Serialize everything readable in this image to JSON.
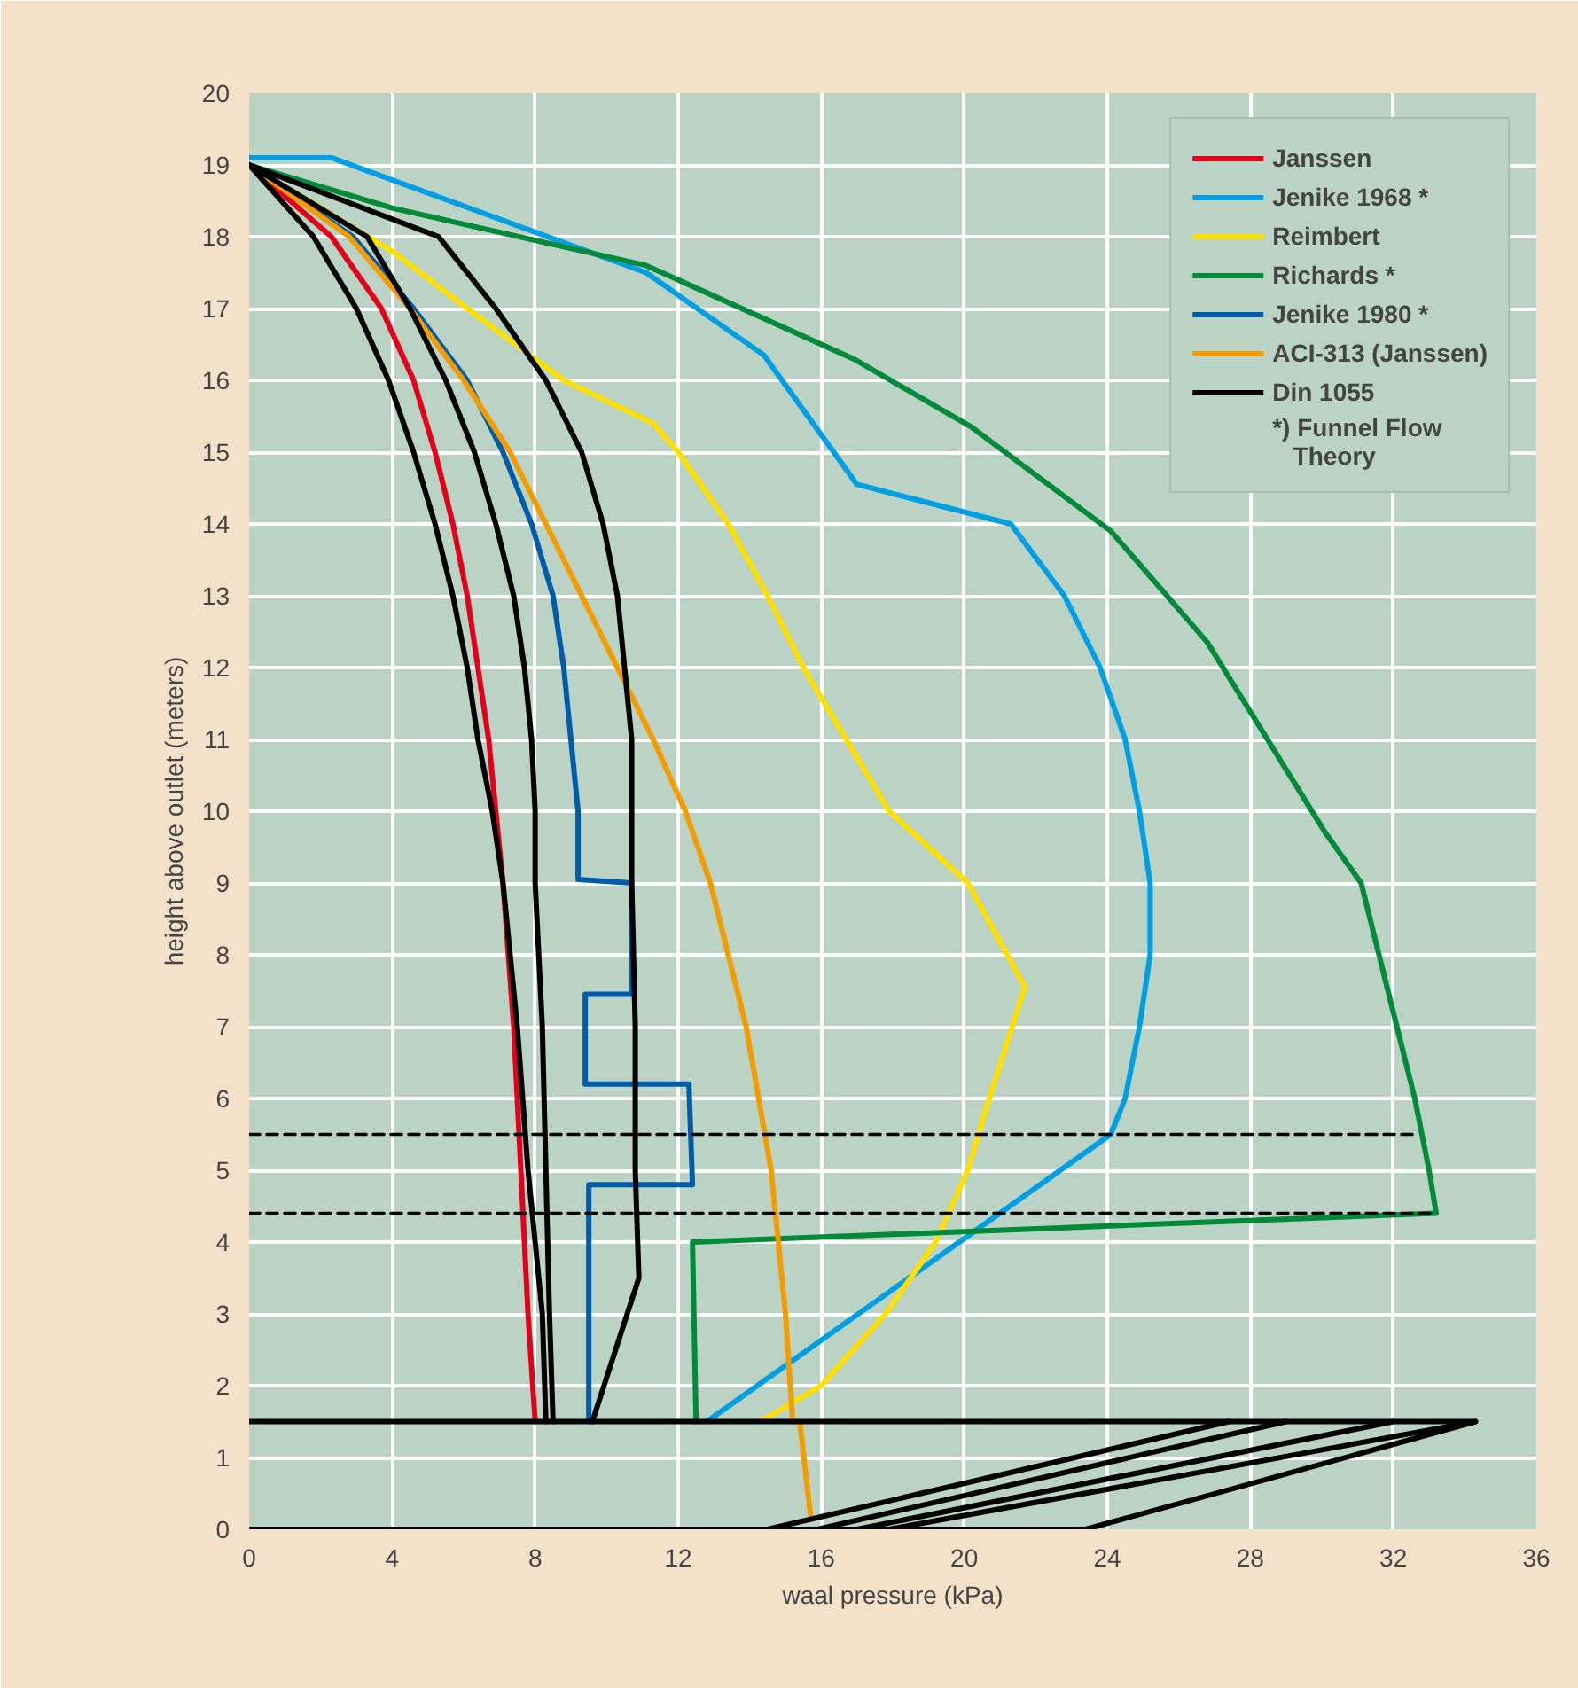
{
  "chart_data": {
    "type": "line",
    "xlabel": "waal pressure (kPa)",
    "ylabel": "height above outlet (meters)",
    "xlim": [
      0,
      36
    ],
    "ylim": [
      0,
      20
    ],
    "xticks": [
      0,
      4,
      8,
      12,
      16,
      20,
      24,
      28,
      32,
      36
    ],
    "yticks": [
      0,
      1,
      2,
      3,
      4,
      5,
      6,
      7,
      8,
      9,
      10,
      11,
      12,
      13,
      14,
      15,
      16,
      17,
      18,
      19,
      20
    ],
    "grid": true,
    "legend": "top right",
    "annotations": [
      "*) Funnel Flow\n   Theory"
    ],
    "series": [
      {
        "name": "Janssen",
        "color": "#e2001a",
        "x": [
          0,
          2.3,
          3.7,
          4.6,
          5.2,
          5.7,
          6.1,
          6.4,
          6.7,
          6.9,
          7.1,
          7.4,
          7.6,
          7.8,
          8.0
        ],
        "values": [
          19,
          18,
          17,
          16,
          15,
          14,
          13,
          12,
          11,
          10,
          9,
          7,
          5,
          3,
          1.5
        ]
      },
      {
        "name": "Jenike 1968 *",
        "color": "#009fe3",
        "x": [
          0,
          2.3,
          11.1,
          14.4,
          17.0,
          21.3,
          22.8,
          23.8,
          24.5,
          24.9,
          25.2,
          25.2,
          24.9,
          24.5,
          24.1,
          12.8
        ],
        "values": [
          19.1,
          19.1,
          17.5,
          16.35,
          14.55,
          14.0,
          13,
          12,
          11,
          10,
          9,
          8,
          7,
          6,
          5.5,
          1.5
        ]
      },
      {
        "name": "Reimbert",
        "color": "#ffe000",
        "x": [
          0,
          4.0,
          6.1,
          8.8,
          11.3,
          12.0,
          13.4,
          14.5,
          15.5,
          16.7,
          17.9,
          20.1,
          21.7,
          20.7,
          20.1,
          19.2,
          17.8,
          16.0,
          14.3
        ],
        "values": [
          19,
          17.8,
          17,
          16,
          15.4,
          15,
          14,
          13,
          12,
          11,
          10,
          9,
          7.55,
          6,
          5,
          4,
          3,
          2,
          1.5
        ]
      },
      {
        "name": "Richards *",
        "color": "#008a3a",
        "x": [
          0,
          4.0,
          11.1,
          16.9,
          20.2,
          24.1,
          26.8,
          30.1,
          31.1,
          31.6,
          32.1,
          32.6,
          33.0,
          33.2,
          12.4,
          12.5
        ],
        "values": [
          19,
          18.4,
          17.6,
          16.3,
          15.35,
          13.9,
          12.35,
          9.7,
          9,
          8,
          7,
          6,
          5,
          4.4,
          4.0,
          1.5
        ]
      },
      {
        "name": "Jenike 1980 *",
        "color": "#005ca9",
        "x": [
          0,
          2.9,
          4.6,
          6.1,
          7.1,
          7.9,
          8.5,
          8.8,
          9.0,
          9.2,
          9.2,
          10.7,
          10.7,
          9.4,
          9.4,
          12.3,
          12.4,
          9.5,
          9.5
        ],
        "values": [
          19,
          18,
          17,
          16,
          15,
          14,
          13,
          12,
          11,
          10,
          9.05,
          9.0,
          7.45,
          7.45,
          6.2,
          6.2,
          4.8,
          4.8,
          1.5
        ]
      },
      {
        "name": "ACI-313 (Janssen)",
        "color": "#f39c00",
        "x": [
          0,
          2.8,
          4.5,
          6.0,
          7.3,
          8.3,
          9.3,
          10.3,
          11.3,
          12.2,
          12.9,
          13.9,
          14.6,
          15.0,
          15.2,
          15.4,
          15.7
        ],
        "values": [
          19,
          18,
          17,
          16,
          15,
          14,
          13,
          12,
          11,
          10,
          9,
          7,
          5,
          3,
          1.5,
          1.5,
          0.2
        ]
      },
      {
        "name": "Din 1055",
        "color": "#000000",
        "x": [
          0,
          1.8,
          3.0,
          3.9,
          4.6,
          5.2,
          5.7,
          6.1,
          6.4,
          6.8,
          7.1,
          7.5,
          7.8,
          8.2,
          8.3
        ],
        "values": [
          19,
          18,
          17,
          16,
          15,
          14,
          13,
          12,
          11,
          10,
          9,
          7,
          5,
          3,
          1.5
        ]
      },
      {
        "color": "#000000",
        "x": [
          0,
          3.3,
          4.5,
          5.5,
          6.3,
          6.9,
          7.4,
          7.7,
          7.9,
          8.0,
          8.0,
          8.2,
          8.3,
          8.4,
          8.5
        ],
        "values": [
          19,
          18,
          17,
          16,
          15,
          14,
          13,
          12,
          11,
          10,
          9,
          7,
          5,
          3,
          1.5
        ]
      },
      {
        "color": "#000000",
        "x": [
          0,
          5.3,
          6.9,
          8.3,
          9.3,
          9.9,
          10.3,
          10.5,
          10.7,
          10.7,
          10.7,
          10.8,
          10.8,
          10.9,
          9.6
        ],
        "values": [
          19,
          18,
          17,
          16,
          15,
          14,
          13,
          12,
          11,
          10,
          9,
          7,
          5,
          3.5,
          1.5
        ]
      },
      {
        "color": "#000000",
        "x": [
          0,
          34.3,
          23.4,
          0
        ],
        "values": [
          1.5,
          1.5,
          0,
          0
        ]
      },
      {
        "color": "#000000",
        "x": [
          14.5,
          27.4
        ],
        "values": [
          0,
          1.5
        ]
      },
      {
        "color": "#000000",
        "x": [
          15.9,
          29.0
        ],
        "values": [
          0,
          1.5
        ]
      },
      {
        "color": "#000000",
        "x": [
          17.0,
          32.0
        ],
        "values": [
          0,
          1.5
        ]
      },
      {
        "color": "#000000",
        "x": [
          17.9,
          34.3
        ],
        "values": [
          0,
          1.5
        ]
      },
      {
        "color": "#000000",
        "line_style": "dashed",
        "x": [
          0,
          32.6
        ],
        "values": [
          5.5,
          5.5
        ]
      },
      {
        "color": "#000000",
        "line_style": "dashed",
        "x": [
          0,
          33.2
        ],
        "values": [
          4.4,
          4.4
        ]
      }
    ]
  }
}
